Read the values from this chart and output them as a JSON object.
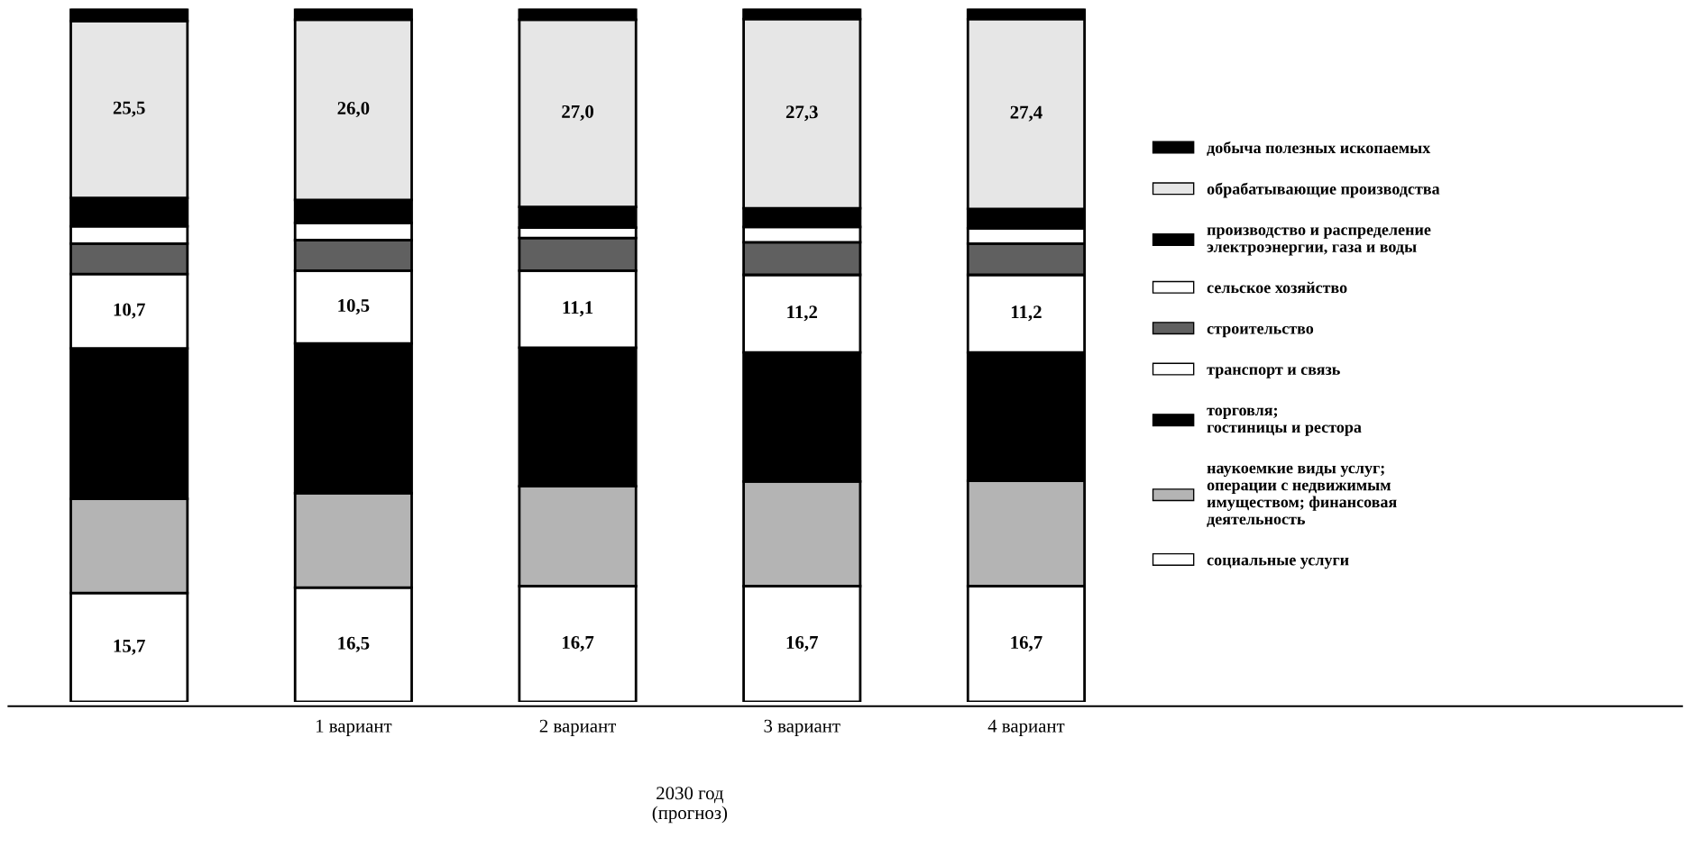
{
  "chart_data": {
    "type": "bar",
    "stacked": true,
    "categories": [
      null,
      "1 вариант",
      "2 вариант",
      "3 вариант",
      "4 вариант"
    ],
    "series": [
      {
        "name": "социальные услуги",
        "color": "#ffffff",
        "values": [
          15.7,
          16.5,
          16.7,
          16.7,
          16.7
        ],
        "value_labels": [
          "15,7",
          "16,5",
          "16,7",
          "16,7",
          "16,7"
        ]
      },
      {
        "name": "наукоемкие виды услуг;\nоперации с недвижимым\nимуществом; финансовая\nдеятельность",
        "color": "#b4b4b4",
        "values": [
          13.6,
          13.6,
          14.4,
          15.1,
          15.2
        ],
        "value_labels": [
          null,
          null,
          null,
          null,
          null
        ]
      },
      {
        "name": "торговля;\nгостиницы и рестора",
        "color": "#000000",
        "values": [
          21.7,
          21.6,
          20.0,
          18.6,
          18.5
        ]
      },
      {
        "name": "транспорт и связь",
        "color": "#ffffff",
        "values": [
          10.7,
          10.5,
          11.1,
          11.2,
          11.2
        ],
        "value_labels": [
          "10,7",
          "10,5",
          "11,1",
          "11,2",
          "11,2"
        ]
      },
      {
        "name": "строительство",
        "color": "#606060",
        "values": [
          4.4,
          4.4,
          4.7,
          4.7,
          4.5
        ]
      },
      {
        "name": "сельское хозяйство",
        "color": "#ffffff",
        "values": [
          2.5,
          2.5,
          1.5,
          2.2,
          2.2
        ]
      },
      {
        "name": "производство и распределение\nэлектроэнергии, газа и воды",
        "color": "#000000",
        "values": [
          4.1,
          3.3,
          3.0,
          2.7,
          2.8
        ]
      },
      {
        "name": "обрабатывающие производства",
        "color": "#e6e6e6",
        "values": [
          25.5,
          26.0,
          27.0,
          27.3,
          27.4
        ],
        "value_labels": [
          "25,5",
          "26,0",
          "27,0",
          "27,3",
          "27,4"
        ]
      },
      {
        "name": "добыча полезных ископаемых",
        "color": "#000000",
        "values": [
          1.8,
          1.6,
          1.6,
          1.5,
          1.5
        ]
      }
    ],
    "legend": "right",
    "annotations": [
      "2030 год\n(прогноз)"
    ]
  }
}
